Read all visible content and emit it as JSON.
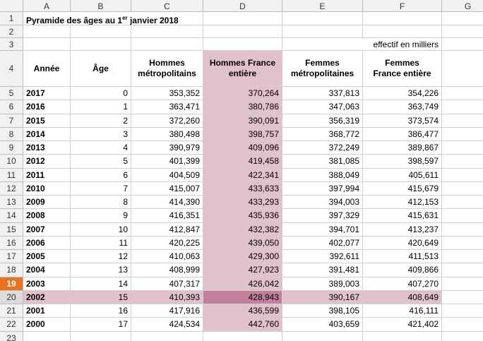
{
  "column_headers": [
    "A",
    "B",
    "C",
    "D",
    "E",
    "F",
    "G"
  ],
  "row_headers": [
    "1",
    "2",
    "3",
    "4",
    "5",
    "6",
    "7",
    "8",
    "9",
    "10",
    "11",
    "12",
    "13",
    "14",
    "15",
    "16",
    "17",
    "18",
    "19",
    "20",
    "21",
    "22",
    "23"
  ],
  "title": {
    "before": "Pyramide des âges au 1",
    "sup": "er",
    "after": " janvier 2018"
  },
  "unit_note": "effectif en milliers",
  "table": {
    "header": [
      [
        "Année"
      ],
      [
        "Âge"
      ],
      [
        "Hommes",
        "métropolitains"
      ],
      [
        "Hommes France",
        "entière"
      ],
      [
        "Femmes",
        "métropolitaines"
      ],
      [
        "Femmes",
        "France entière"
      ]
    ],
    "rows": [
      [
        "2017",
        "0",
        "353,352",
        "370,264",
        "337,813",
        "354,226"
      ],
      [
        "2016",
        "1",
        "363,471",
        "380,786",
        "347,063",
        "363,749"
      ],
      [
        "2015",
        "2",
        "372,260",
        "390,091",
        "356,319",
        "373,574"
      ],
      [
        "2014",
        "3",
        "380,498",
        "398,757",
        "368,772",
        "386,477"
      ],
      [
        "2013",
        "4",
        "390,979",
        "409,096",
        "372,249",
        "389,867"
      ],
      [
        "2012",
        "5",
        "401,399",
        "419,458",
        "381,085",
        "398,597"
      ],
      [
        "2011",
        "6",
        "404,509",
        "422,341",
        "388,049",
        "405,611"
      ],
      [
        "2010",
        "7",
        "415,007",
        "433,633",
        "397,994",
        "415,679"
      ],
      [
        "2009",
        "8",
        "414,390",
        "433,293",
        "394,003",
        "412,153"
      ],
      [
        "2008",
        "9",
        "416,351",
        "435,936",
        "397,329",
        "415,631"
      ],
      [
        "2007",
        "10",
        "412,847",
        "432,382",
        "394,701",
        "413,237"
      ],
      [
        "2006",
        "11",
        "420,225",
        "439,050",
        "402,077",
        "420,649"
      ],
      [
        "2005",
        "12",
        "410,063",
        "429,300",
        "392,611",
        "411,513"
      ],
      [
        "2004",
        "13",
        "408,999",
        "427,923",
        "391,481",
        "409,866"
      ],
      [
        "2003",
        "14",
        "407,317",
        "426,042",
        "389,003",
        "407,270"
      ],
      [
        "2002",
        "15",
        "410,393",
        "428,943",
        "390,167",
        "408,649"
      ],
      [
        "2001",
        "16",
        "417,916",
        "436,599",
        "398,105",
        "416,111"
      ],
      [
        "2000",
        "17",
        "424,534",
        "442,760",
        "403,659",
        "421,402"
      ]
    ]
  }
}
